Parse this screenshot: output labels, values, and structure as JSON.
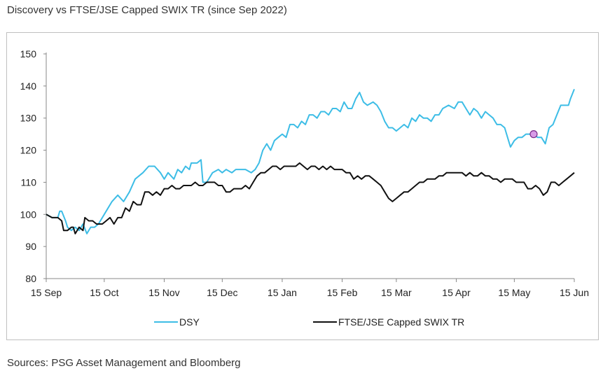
{
  "title": "Discovery vs FTSE/JSE Capped SWIX TR (since Sep 2022)",
  "source": "Sources: PSG Asset Management and Bloomberg",
  "colors": {
    "dsy": "#3dbde6",
    "swix": "#111111",
    "marker_fill": "#d79be6",
    "marker_stroke": "#7a2a8a"
  },
  "chart_data": {
    "type": "line",
    "title": "Discovery vs FTSE/JSE Capped SWIX TR (since Sep 2022)",
    "xlabel": "",
    "ylabel": "",
    "ylim": [
      80,
      150
    ],
    "yticks": [
      80,
      90,
      100,
      110,
      120,
      130,
      140,
      150
    ],
    "xlim": [
      0,
      273
    ],
    "xticks": [
      {
        "label": "15 Sep",
        "x": 0
      },
      {
        "label": "15 Oct",
        "x": 30
      },
      {
        "label": "15 Nov",
        "x": 61
      },
      {
        "label": "15 Dec",
        "x": 91
      },
      {
        "label": "15 Jan",
        "x": 122
      },
      {
        "label": "15 Feb",
        "x": 153
      },
      {
        "label": "15 Mar",
        "x": 181
      },
      {
        "label": "15 Apr",
        "x": 212
      },
      {
        "label": "15 May",
        "x": 242
      },
      {
        "label": "15 Jun",
        "x": 273
      }
    ],
    "legend_position": "bottom",
    "series": [
      {
        "name": "DSY",
        "color": "#3dbde6",
        "points": [
          [
            0,
            100
          ],
          [
            3,
            99
          ],
          [
            6,
            99
          ],
          [
            7,
            101
          ],
          [
            8,
            101
          ],
          [
            10,
            98
          ],
          [
            11,
            96
          ],
          [
            13,
            95
          ],
          [
            15,
            96
          ],
          [
            17,
            95
          ],
          [
            19,
            97
          ],
          [
            21,
            94
          ],
          [
            23,
            96
          ],
          [
            25,
            96
          ],
          [
            27,
            97
          ],
          [
            29,
            99
          ],
          [
            31,
            101
          ],
          [
            34,
            104
          ],
          [
            37,
            106
          ],
          [
            40,
            104
          ],
          [
            43,
            107
          ],
          [
            46,
            111
          ],
          [
            50,
            113
          ],
          [
            53,
            115
          ],
          [
            56,
            115
          ],
          [
            59,
            113
          ],
          [
            61,
            111
          ],
          [
            63,
            113
          ],
          [
            66,
            111
          ],
          [
            68,
            114
          ],
          [
            70,
            113
          ],
          [
            72,
            115
          ],
          [
            74,
            114
          ],
          [
            75,
            116
          ],
          [
            78,
            116
          ],
          [
            80,
            117
          ],
          [
            81,
            110
          ],
          [
            83,
            110
          ],
          [
            86,
            113
          ],
          [
            89,
            114
          ],
          [
            91,
            113
          ],
          [
            93,
            114
          ],
          [
            96,
            113
          ],
          [
            98,
            114
          ],
          [
            101,
            114
          ],
          [
            103,
            114
          ],
          [
            106,
            113
          ],
          [
            108,
            114
          ],
          [
            110,
            116
          ],
          [
            112,
            120
          ],
          [
            114,
            122
          ],
          [
            116,
            120
          ],
          [
            118,
            123
          ],
          [
            120,
            124
          ],
          [
            122,
            125
          ],
          [
            124,
            124
          ],
          [
            126,
            128
          ],
          [
            128,
            128
          ],
          [
            130,
            127
          ],
          [
            132,
            129
          ],
          [
            134,
            128
          ],
          [
            136,
            131
          ],
          [
            138,
            131
          ],
          [
            140,
            130
          ],
          [
            142,
            132
          ],
          [
            144,
            132
          ],
          [
            146,
            131
          ],
          [
            148,
            133
          ],
          [
            150,
            133
          ],
          [
            152,
            132
          ],
          [
            154,
            135
          ],
          [
            156,
            133
          ],
          [
            158,
            133
          ],
          [
            160,
            136
          ],
          [
            162,
            138
          ],
          [
            164,
            135
          ],
          [
            166,
            134
          ],
          [
            169,
            135
          ],
          [
            171,
            134
          ],
          [
            173,
            132
          ],
          [
            175,
            129
          ],
          [
            177,
            127
          ],
          [
            179,
            127
          ],
          [
            181,
            126
          ],
          [
            183,
            127
          ],
          [
            185,
            128
          ],
          [
            187,
            127
          ],
          [
            189,
            130
          ],
          [
            191,
            129
          ],
          [
            193,
            131
          ],
          [
            195,
            130
          ],
          [
            197,
            130
          ],
          [
            199,
            129
          ],
          [
            201,
            131
          ],
          [
            203,
            131
          ],
          [
            205,
            133
          ],
          [
            208,
            134
          ],
          [
            211,
            133
          ],
          [
            213,
            135
          ],
          [
            215,
            135
          ],
          [
            217,
            133
          ],
          [
            219,
            131
          ],
          [
            221,
            133
          ],
          [
            223,
            132
          ],
          [
            225,
            130
          ],
          [
            227,
            132
          ],
          [
            229,
            131
          ],
          [
            231,
            130
          ],
          [
            233,
            128
          ],
          [
            235,
            128
          ],
          [
            237,
            127
          ],
          [
            239,
            123
          ],
          [
            240,
            121
          ],
          [
            242,
            123
          ],
          [
            244,
            124
          ],
          [
            246,
            124
          ],
          [
            248,
            125
          ],
          [
            250,
            125
          ],
          [
            252,
            125
          ],
          [
            254,
            124
          ],
          [
            256,
            124
          ],
          [
            258,
            122
          ],
          [
            260,
            127
          ],
          [
            262,
            128
          ],
          [
            264,
            131
          ],
          [
            266,
            134
          ],
          [
            268,
            134
          ],
          [
            270,
            134
          ],
          [
            271,
            136
          ],
          [
            273,
            139
          ]
        ]
      },
      {
        "name": "FTSE/JSE Capped SWIX TR",
        "color": "#111111",
        "points": [
          [
            0,
            100
          ],
          [
            3,
            99
          ],
          [
            6,
            99
          ],
          [
            8,
            98
          ],
          [
            9,
            95
          ],
          [
            11,
            95
          ],
          [
            13,
            96
          ],
          [
            14,
            96
          ],
          [
            15,
            94
          ],
          [
            17,
            96
          ],
          [
            19,
            95
          ],
          [
            20,
            99
          ],
          [
            22,
            98
          ],
          [
            24,
            98
          ],
          [
            26,
            97
          ],
          [
            29,
            97
          ],
          [
            31,
            98
          ],
          [
            33,
            99
          ],
          [
            35,
            97
          ],
          [
            37,
            99
          ],
          [
            39,
            99
          ],
          [
            41,
            102
          ],
          [
            43,
            101
          ],
          [
            45,
            104
          ],
          [
            47,
            103
          ],
          [
            49,
            103
          ],
          [
            51,
            107
          ],
          [
            53,
            107
          ],
          [
            55,
            106
          ],
          [
            57,
            107
          ],
          [
            59,
            106
          ],
          [
            61,
            108
          ],
          [
            63,
            108
          ],
          [
            65,
            109
          ],
          [
            67,
            108
          ],
          [
            69,
            108
          ],
          [
            71,
            109
          ],
          [
            73,
            109
          ],
          [
            75,
            109
          ],
          [
            77,
            110
          ],
          [
            79,
            109
          ],
          [
            81,
            109
          ],
          [
            83,
            110
          ],
          [
            85,
            110
          ],
          [
            87,
            110
          ],
          [
            89,
            109
          ],
          [
            91,
            109
          ],
          [
            93,
            107
          ],
          [
            95,
            107
          ],
          [
            97,
            108
          ],
          [
            99,
            108
          ],
          [
            101,
            108
          ],
          [
            103,
            109
          ],
          [
            105,
            108
          ],
          [
            107,
            110
          ],
          [
            109,
            112
          ],
          [
            111,
            113
          ],
          [
            113,
            113
          ],
          [
            115,
            114
          ],
          [
            117,
            115
          ],
          [
            119,
            115
          ],
          [
            121,
            114
          ],
          [
            123,
            115
          ],
          [
            125,
            115
          ],
          [
            127,
            115
          ],
          [
            129,
            115
          ],
          [
            131,
            116
          ],
          [
            133,
            115
          ],
          [
            135,
            114
          ],
          [
            137,
            115
          ],
          [
            139,
            115
          ],
          [
            141,
            114
          ],
          [
            143,
            115
          ],
          [
            145,
            114
          ],
          [
            147,
            115
          ],
          [
            149,
            114
          ],
          [
            151,
            114
          ],
          [
            153,
            114
          ],
          [
            155,
            113
          ],
          [
            157,
            113
          ],
          [
            159,
            111
          ],
          [
            161,
            112
          ],
          [
            163,
            111
          ],
          [
            165,
            112
          ],
          [
            167,
            112
          ],
          [
            169,
            111
          ],
          [
            171,
            110
          ],
          [
            173,
            109
          ],
          [
            175,
            107
          ],
          [
            177,
            105
          ],
          [
            179,
            104
          ],
          [
            181,
            105
          ],
          [
            183,
            106
          ],
          [
            185,
            107
          ],
          [
            187,
            107
          ],
          [
            189,
            108
          ],
          [
            191,
            109
          ],
          [
            193,
            110
          ],
          [
            195,
            110
          ],
          [
            197,
            111
          ],
          [
            199,
            111
          ],
          [
            201,
            111
          ],
          [
            203,
            112
          ],
          [
            205,
            112
          ],
          [
            207,
            113
          ],
          [
            209,
            113
          ],
          [
            211,
            113
          ],
          [
            213,
            113
          ],
          [
            215,
            113
          ],
          [
            217,
            112
          ],
          [
            219,
            113
          ],
          [
            221,
            112
          ],
          [
            223,
            112
          ],
          [
            225,
            113
          ],
          [
            227,
            112
          ],
          [
            229,
            112
          ],
          [
            231,
            111
          ],
          [
            233,
            111
          ],
          [
            235,
            110
          ],
          [
            237,
            111
          ],
          [
            239,
            111
          ],
          [
            241,
            111
          ],
          [
            243,
            110
          ],
          [
            245,
            110
          ],
          [
            247,
            110
          ],
          [
            249,
            108
          ],
          [
            251,
            108
          ],
          [
            253,
            109
          ],
          [
            255,
            108
          ],
          [
            257,
            106
          ],
          [
            259,
            107
          ],
          [
            261,
            110
          ],
          [
            263,
            110
          ],
          [
            265,
            109
          ],
          [
            267,
            110
          ],
          [
            269,
            111
          ],
          [
            271,
            112
          ],
          [
            273,
            113
          ]
        ]
      }
    ],
    "annotations": [
      {
        "type": "marker",
        "series": "DSY",
        "x": 252,
        "y": 125
      }
    ]
  }
}
